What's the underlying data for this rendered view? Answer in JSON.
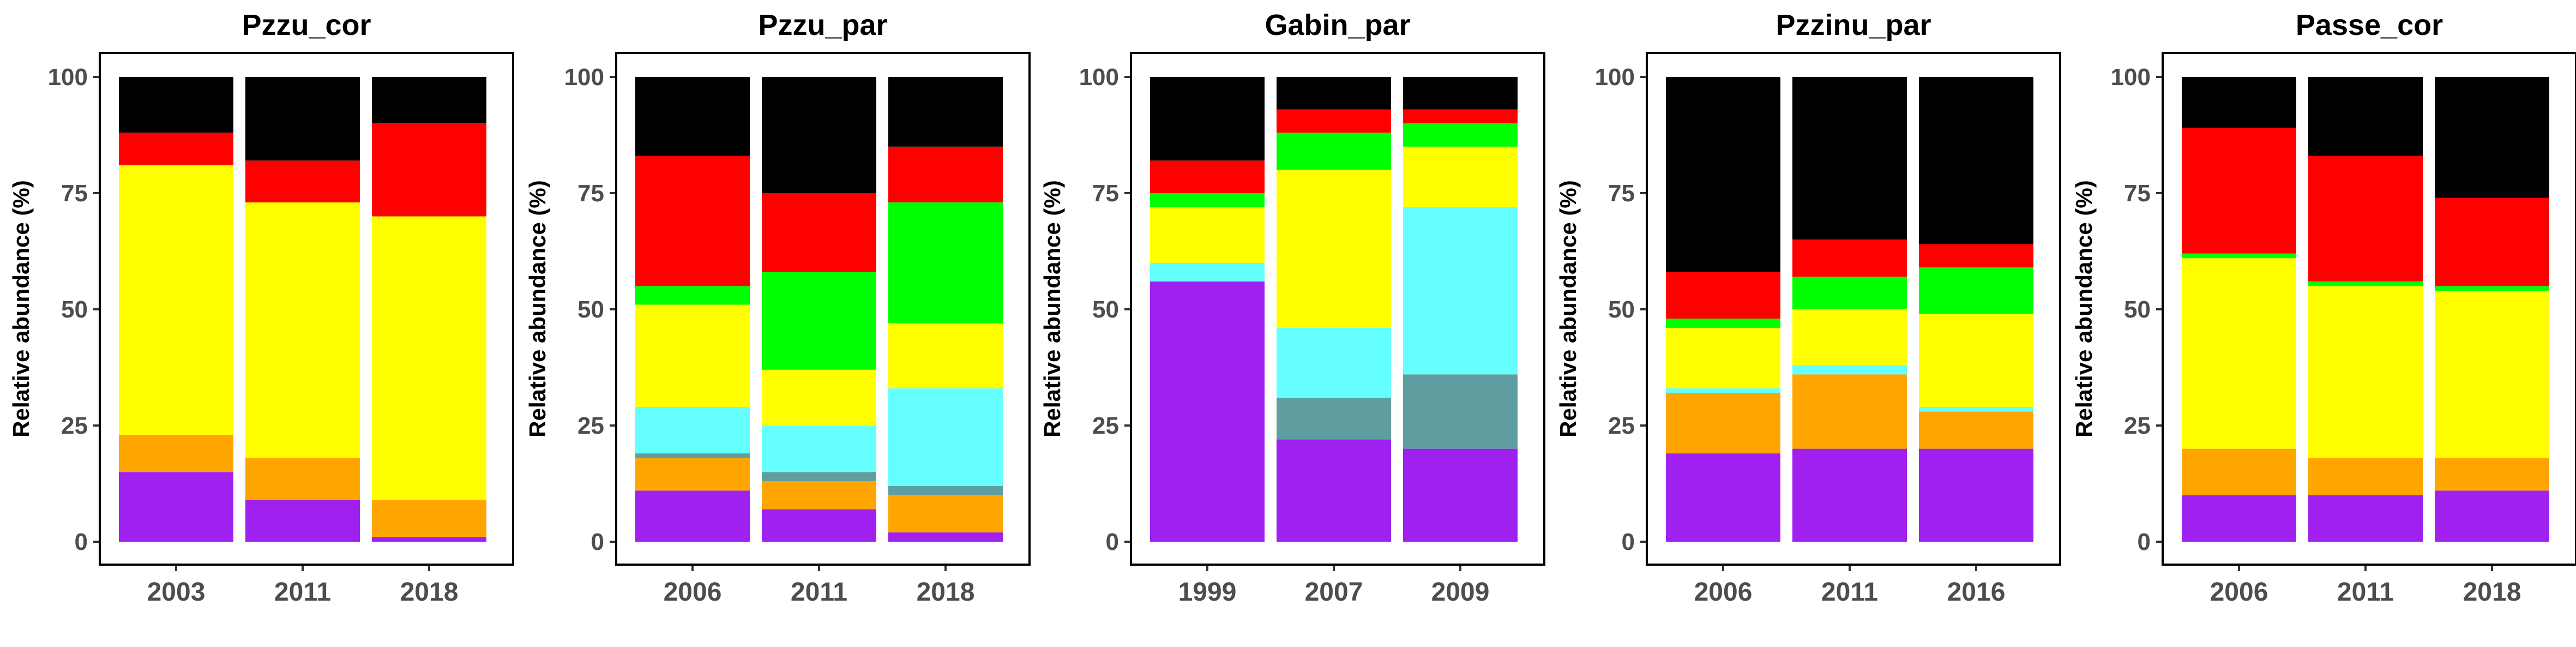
{
  "chart_data": [
    {
      "type": "bar",
      "stacked": true,
      "title": "Pzzu_cor",
      "ylabel": "Relative abundance (%)",
      "ylim": [
        0,
        100
      ],
      "yticks": [
        "0",
        "25",
        "50",
        "75",
        "100"
      ],
      "categories": [
        "2003",
        "2011",
        "2018"
      ],
      "series": [
        {
          "color": "#A020F0",
          "values": [
            15,
            9,
            1
          ]
        },
        {
          "color": "#5F9EA0",
          "values": [
            0,
            0,
            0
          ]
        },
        {
          "color": "#FFA500",
          "values": [
            8,
            9,
            8
          ]
        },
        {
          "color": "#66FFFF",
          "values": [
            0,
            0,
            0
          ]
        },
        {
          "color": "#FFFF00",
          "values": [
            58,
            55,
            61
          ]
        },
        {
          "color": "#00FF00",
          "values": [
            0,
            0,
            0
          ]
        },
        {
          "color": "#FF0000",
          "values": [
            7,
            9,
            20
          ]
        },
        {
          "color": "#000000",
          "values": [
            12,
            18,
            10
          ]
        }
      ]
    },
    {
      "type": "bar",
      "stacked": true,
      "title": "Pzzu_par",
      "ylabel": "Relative abundance (%)",
      "ylim": [
        0,
        100
      ],
      "yticks": [
        "0",
        "25",
        "50",
        "75",
        "100"
      ],
      "categories": [
        "2006",
        "2011",
        "2018"
      ],
      "series": [
        {
          "color": "#A020F0",
          "values": [
            11,
            7,
            2
          ]
        },
        {
          "color": "#5F9EA0",
          "values": [
            0,
            0,
            0
          ]
        },
        {
          "color": "#FFA500",
          "values": [
            7,
            6,
            8
          ]
        },
        {
          "color": "#5F9EA0",
          "values": [
            1,
            2,
            2
          ]
        },
        {
          "color": "#66FFFF",
          "values": [
            10,
            10,
            21
          ]
        },
        {
          "color": "#FFFF00",
          "values": [
            22,
            12,
            14
          ]
        },
        {
          "color": "#00FF00",
          "values": [
            4,
            21,
            26
          ]
        },
        {
          "color": "#FF0000",
          "values": [
            28,
            17,
            12
          ]
        },
        {
          "color": "#000000",
          "values": [
            17,
            25,
            15
          ]
        }
      ]
    },
    {
      "type": "bar",
      "stacked": true,
      "title": "Gabin_par",
      "ylabel": "Relative abundance (%)",
      "ylim": [
        0,
        100
      ],
      "yticks": [
        "0",
        "25",
        "50",
        "75",
        "100"
      ],
      "categories": [
        "1999",
        "2007",
        "2009"
      ],
      "series": [
        {
          "color": "#A020F0",
          "values": [
            56,
            22,
            20
          ]
        },
        {
          "color": "#5F9EA0",
          "values": [
            0,
            9,
            16
          ]
        },
        {
          "color": "#FFA500",
          "values": [
            0,
            0,
            0
          ]
        },
        {
          "color": "#66FFFF",
          "values": [
            4,
            15,
            36
          ]
        },
        {
          "color": "#FFFF00",
          "values": [
            12,
            34,
            13
          ]
        },
        {
          "color": "#00FF00",
          "values": [
            3,
            8,
            5
          ]
        },
        {
          "color": "#FF0000",
          "values": [
            7,
            5,
            3
          ]
        },
        {
          "color": "#000000",
          "values": [
            18,
            7,
            7
          ]
        }
      ]
    },
    {
      "type": "bar",
      "stacked": true,
      "title": "Pzzinu_par",
      "ylabel": "Relative abundance (%)",
      "ylim": [
        0,
        100
      ],
      "yticks": [
        "0",
        "25",
        "50",
        "75",
        "100"
      ],
      "categories": [
        "2006",
        "2011",
        "2016"
      ],
      "series": [
        {
          "color": "#A020F0",
          "values": [
            19,
            20,
            20
          ]
        },
        {
          "color": "#5F9EA0",
          "values": [
            0,
            0,
            0
          ]
        },
        {
          "color": "#FFA500",
          "values": [
            13,
            16,
            8
          ]
        },
        {
          "color": "#66FFFF",
          "values": [
            1,
            2,
            1
          ]
        },
        {
          "color": "#FFFF00",
          "values": [
            13,
            12,
            20
          ]
        },
        {
          "color": "#00FF00",
          "values": [
            2,
            7,
            10
          ]
        },
        {
          "color": "#FF0000",
          "values": [
            10,
            8,
            5
          ]
        },
        {
          "color": "#000000",
          "values": [
            42,
            35,
            36
          ]
        }
      ]
    },
    {
      "type": "bar",
      "stacked": true,
      "title": "Passe_cor",
      "ylabel": "Relative abundance (%)",
      "ylim": [
        0,
        100
      ],
      "yticks": [
        "0",
        "25",
        "50",
        "75",
        "100"
      ],
      "categories": [
        "2006",
        "2011",
        "2018"
      ],
      "series": [
        {
          "color": "#A020F0",
          "values": [
            10,
            10,
            11
          ]
        },
        {
          "color": "#5F9EA0",
          "values": [
            0,
            0,
            0
          ]
        },
        {
          "color": "#FFA500",
          "values": [
            10,
            8,
            7
          ]
        },
        {
          "color": "#66FFFF",
          "values": [
            0,
            0,
            0
          ]
        },
        {
          "color": "#FFFF00",
          "values": [
            41,
            37,
            36
          ]
        },
        {
          "color": "#00FF00",
          "values": [
            1,
            1,
            1
          ]
        },
        {
          "color": "#FF0000",
          "values": [
            27,
            27,
            19
          ]
        },
        {
          "color": "#000000",
          "values": [
            11,
            17,
            26
          ]
        }
      ]
    }
  ]
}
